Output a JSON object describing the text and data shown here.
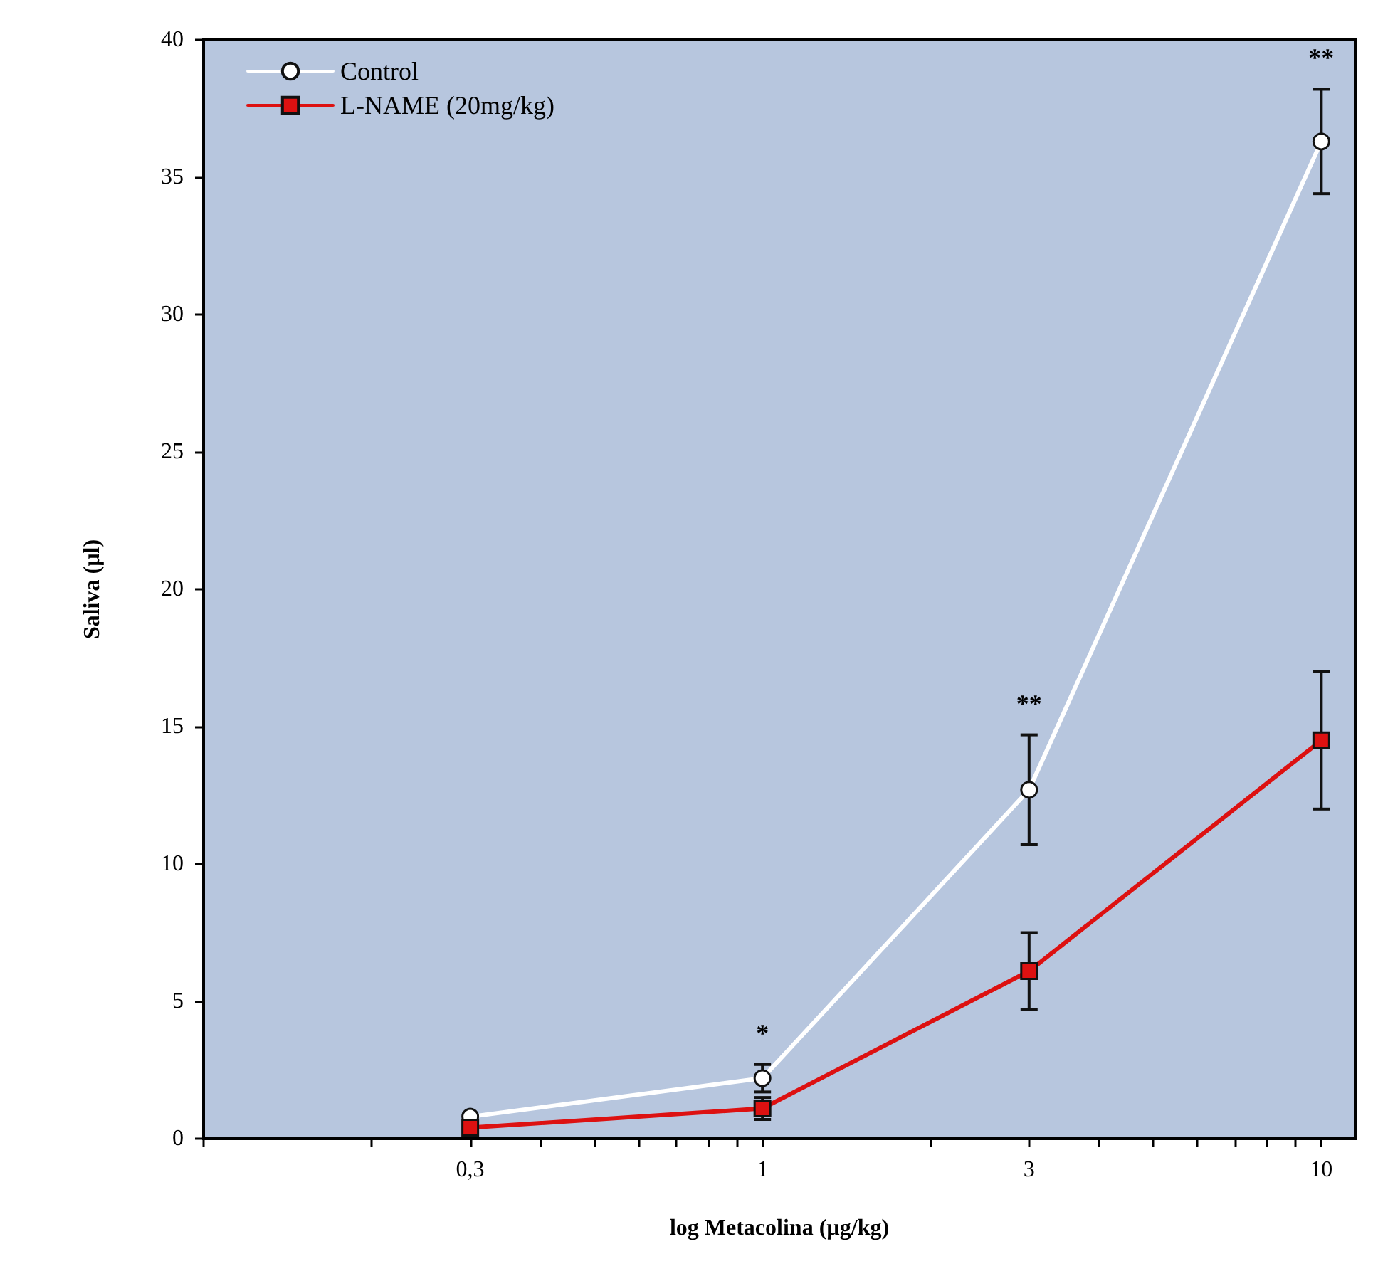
{
  "chart_data": {
    "type": "line",
    "xlabel": "log Metacolina (µg/kg)",
    "ylabel": "Saliva (µl)",
    "log": "x",
    "x": [
      0.3,
      1,
      3,
      10
    ],
    "xlim": [
      0.1,
      11.5
    ],
    "xticks": [
      {
        "value": 0.1,
        "label": null
      },
      {
        "value": 0.2,
        "label": null
      },
      {
        "value": 0.3,
        "label": "0,3"
      },
      {
        "value": 0.4,
        "label": null
      },
      {
        "value": 0.5,
        "label": null
      },
      {
        "value": 0.6,
        "label": null
      },
      {
        "value": 0.7,
        "label": null
      },
      {
        "value": 0.8,
        "label": null
      },
      {
        "value": 0.9,
        "label": null
      },
      1,
      {
        "value": 2,
        "label": null
      },
      3,
      {
        "value": 4,
        "label": null
      },
      {
        "value": 5,
        "label": null
      },
      {
        "value": 6,
        "label": null
      },
      {
        "value": 7,
        "label": null
      },
      {
        "value": 8,
        "label": null
      },
      {
        "value": 9,
        "label": null
      },
      10
    ],
    "ylim": [
      0,
      40
    ],
    "yticks": [
      0,
      5,
      10,
      15,
      20,
      25,
      30,
      35,
      40
    ],
    "grid": false,
    "legend": "top left",
    "line_style": "solid",
    "series": [
      {
        "name": "Control",
        "color": "#ffffff",
        "marker": "circle",
        "values": [
          0.8,
          2.2,
          12.7,
          36.3
        ],
        "errors": [
          null,
          0.5,
          2,
          1.9
        ]
      },
      {
        "name": "L-NAME (20mg/kg)",
        "color": "#dd1111",
        "marker": "square",
        "values": [
          0.4,
          1.1,
          6.1,
          14.5
        ],
        "errors": [
          null,
          0.4,
          1.4,
          2.5
        ]
      }
    ],
    "annotations": [
      {
        "text": "*",
        "x": 1,
        "y": 2.2
      },
      {
        "text": "**",
        "x": 3,
        "y": 12.7
      },
      {
        "text": "**",
        "x": 10,
        "y": 36.3
      }
    ]
  }
}
